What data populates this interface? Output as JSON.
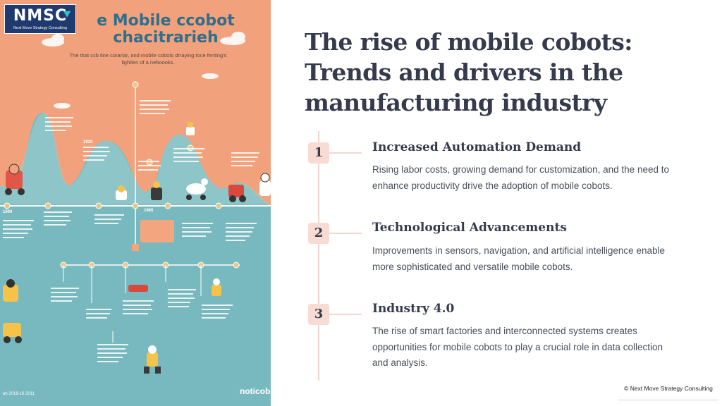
{
  "infographic": {
    "logo": {
      "mark": "NMSC",
      "tagline": "Next Move Strategy Consulting"
    },
    "title_line1": "e Mobile ccobot",
    "title_line2": "chacitrarieh",
    "subtitle": "The that ccb tine corariar, and mobile cobots drraying toce fenting's lightlen of a neboooks.",
    "brand": "noticob",
    "footer_date": "ah 2018-16 2011",
    "colors": {
      "top_bg": "#f1a27c",
      "bottom_bg": "#78b9bf",
      "accent": "#e38b6d"
    }
  },
  "main": {
    "title_line1": "The rise of mobile cobots:",
    "title_line2": "Trends and drivers in the",
    "title_line3": "manufacturing industry"
  },
  "steps": [
    {
      "number": "1",
      "title": "Increased Automation Demand",
      "desc_line1": "Rising labor costs, growing demand for customization, and the need to",
      "desc_line2": "enhance productivity drive the adoption of mobile cobots."
    },
    {
      "number": "2",
      "title": "Technological Advancements",
      "desc_line1": "Improvements in sensors, navigation, and artificial intelligence enable",
      "desc_line2": "more sophisticated and versatile mobile cobots."
    },
    {
      "number": "3",
      "title": "Industry 4.0",
      "desc_line1": "The rise of smart factories and interconnected systems creates",
      "desc_line2": "opportunities for mobile cobots to play a crucial role in data collection",
      "desc_line3": "and analysis."
    }
  ],
  "footer": {
    "copyright": "© Next Move Strategy Consulting"
  },
  "colors": {
    "title": "#353a4d",
    "badge": "#f8dcd4",
    "timeline": "#f3d6cf",
    "text": "#4a4e5c"
  }
}
